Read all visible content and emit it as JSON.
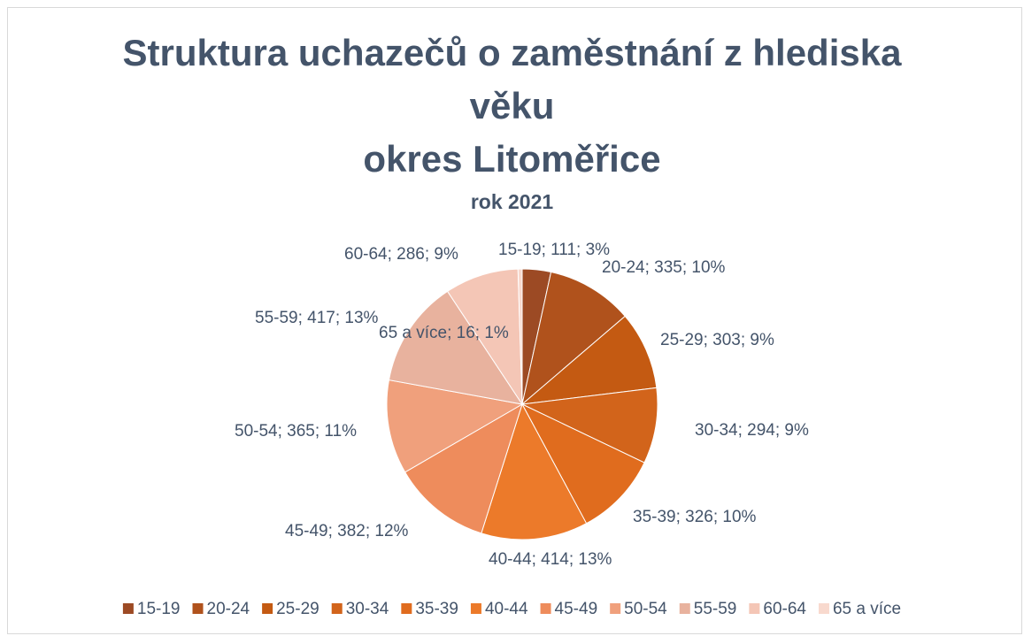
{
  "chart_data": {
    "type": "pie",
    "title_lines": [
      "Struktura uchazečů o zaměstnání z hlediska věku",
      "okres Litoměřice"
    ],
    "subtitle": "rok 2021",
    "categories": [
      "15-19",
      "20-24",
      "25-29",
      "30-34",
      "35-39",
      "40-44",
      "45-49",
      "50-54",
      "55-59",
      "60-64",
      "65 a více"
    ],
    "values": [
      111,
      335,
      303,
      294,
      326,
      414,
      382,
      365,
      417,
      286,
      16
    ],
    "value_labels": [
      "15-19; 111; 3%",
      "20-24; 335; 10%",
      "25-29; 303; 9%",
      "30-34; 294; 9%",
      "35-39; 326; 10%",
      "40-44; 414; 13%",
      "45-49; 382; 12%",
      "50-54; 365; 11%",
      "55-59; 417; 13%",
      "60-64; 286; 9%",
      "65 a více; 16; 1%"
    ],
    "colors": [
      "#9c4a24",
      "#b0521c",
      "#c45a12",
      "#d2641b",
      "#e06c1e",
      "#ec7a2a",
      "#ee8c5c",
      "#f0a07c",
      "#e8b29e",
      "#f4c6b6",
      "#f8d9ce"
    ],
    "legend": "bottom"
  }
}
